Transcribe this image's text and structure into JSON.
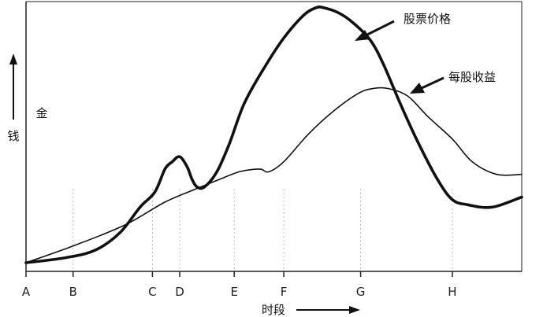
{
  "chart_data": {
    "type": "line",
    "title": "",
    "xlabel": "时段",
    "ylabel": "金钱",
    "ylabel_parts": [
      "钱",
      "金"
    ],
    "x_ticks": [
      "A",
      "B",
      "C",
      "D",
      "E",
      "F",
      "G",
      "H"
    ],
    "xlim": [
      0,
      10
    ],
    "ylim": [
      0,
      100
    ],
    "grid": false,
    "series": [
      {
        "name": "股票价格",
        "color": "#111111",
        "line_style": "thick",
        "points": [
          [
            0,
            0
          ],
          [
            0.8,
            2
          ],
          [
            1.4,
            5
          ],
          [
            1.9,
            12
          ],
          [
            2.3,
            22
          ],
          [
            2.6,
            28
          ],
          [
            2.8,
            37
          ],
          [
            2.95,
            40
          ],
          [
            3.1,
            42
          ],
          [
            3.25,
            38
          ],
          [
            3.35,
            33
          ],
          [
            3.45,
            30
          ],
          [
            3.6,
            30
          ],
          [
            3.85,
            36
          ],
          [
            4.1,
            47
          ],
          [
            4.4,
            63
          ],
          [
            4.8,
            77
          ],
          [
            5.2,
            89
          ],
          [
            5.6,
            98
          ],
          [
            5.85,
            101
          ],
          [
            6.0,
            101
          ],
          [
            6.3,
            99
          ],
          [
            6.6,
            95
          ],
          [
            6.95,
            88
          ],
          [
            7.2,
            79
          ],
          [
            7.55,
            63
          ],
          [
            7.9,
            48
          ],
          [
            8.3,
            33
          ],
          [
            8.6,
            25
          ],
          [
            8.9,
            23
          ],
          [
            9.4,
            22
          ],
          [
            10,
            26
          ]
        ]
      },
      {
        "name": "每股收益",
        "color": "#111111",
        "line_style": "thin",
        "points": [
          [
            0,
            0
          ],
          [
            1.0,
            7
          ],
          [
            2.0,
            15
          ],
          [
            2.8,
            24
          ],
          [
            3.4,
            29
          ],
          [
            3.9,
            33
          ],
          [
            4.3,
            36
          ],
          [
            4.6,
            37
          ],
          [
            4.75,
            37
          ],
          [
            4.9,
            36
          ],
          [
            5.2,
            40
          ],
          [
            5.7,
            51
          ],
          [
            6.2,
            60
          ],
          [
            6.7,
            67
          ],
          [
            7.0,
            69
          ],
          [
            7.3,
            69
          ],
          [
            7.7,
            66
          ],
          [
            8.1,
            58
          ],
          [
            8.6,
            49
          ],
          [
            9.0,
            40
          ],
          [
            9.5,
            35
          ],
          [
            10,
            35
          ]
        ]
      }
    ]
  }
}
